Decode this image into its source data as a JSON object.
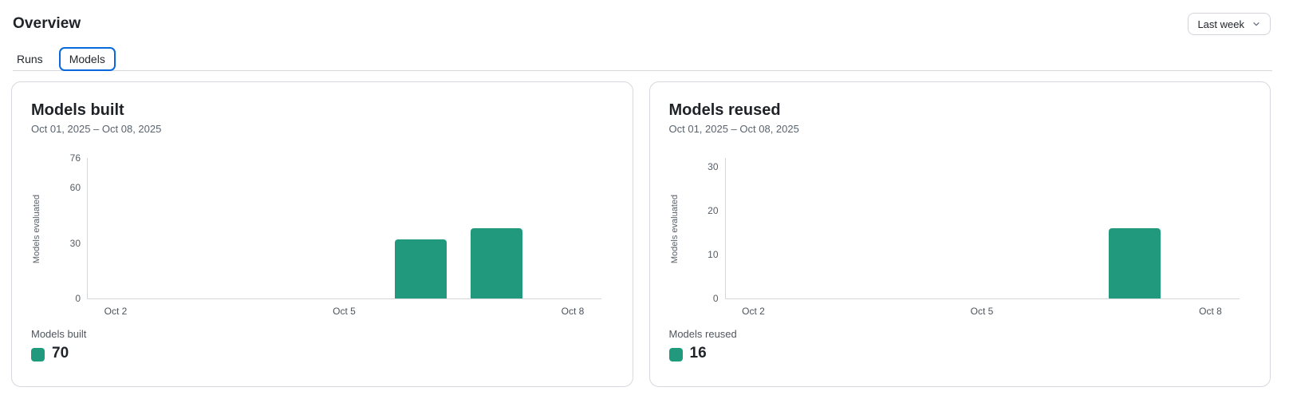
{
  "header": {
    "title": "Overview",
    "time_range_button": {
      "label": "Last week",
      "icon": "chevron-down-icon"
    }
  },
  "tabs": [
    {
      "label": "Runs",
      "active": false
    },
    {
      "label": "Models",
      "active": true
    }
  ],
  "colors": {
    "bar_teal": "#21997D",
    "active_tab_border": "#0969DA",
    "axis_line": "#D4D7DA"
  },
  "cards": [
    {
      "title": "Models built",
      "date_range": "Oct 01, 2025 – Oct 08, 2025",
      "legend": {
        "label": "Models built",
        "value": 70,
        "swatch_color": "#21997D"
      }
    },
    {
      "title": "Models reused",
      "date_range": "Oct 01, 2025 – Oct 08, 2025",
      "legend": {
        "label": "Models reused",
        "value": 16,
        "swatch_color": "#21997D"
      }
    }
  ],
  "chart_data": [
    {
      "type": "bar",
      "title": "Models built",
      "subtitle": "Oct 01, 2025 – Oct 08, 2025",
      "xlabel": "",
      "ylabel": "Models evaluated",
      "ylim": [
        0,
        76
      ],
      "y_ticks": [
        0,
        30,
        60,
        76
      ],
      "x_ticks": [
        {
          "label": "Oct 2",
          "day": 2
        },
        {
          "label": "Oct 5",
          "day": 5
        },
        {
          "label": "Oct 8",
          "day": 8
        }
      ],
      "bars": [
        {
          "date": "Oct 6",
          "day": 6,
          "value": 32
        },
        {
          "date": "Oct 7",
          "day": 7,
          "value": 38
        }
      ],
      "total": 70,
      "bar_color": "#21997D",
      "grid": false,
      "legend_position": "bottom-left"
    },
    {
      "type": "bar",
      "title": "Models reused",
      "subtitle": "Oct 01, 2025 – Oct 08, 2025",
      "xlabel": "",
      "ylabel": "Models evaluated",
      "ylim": [
        0,
        32
      ],
      "y_ticks": [
        0,
        10,
        20,
        30
      ],
      "x_ticks": [
        {
          "label": "Oct 2",
          "day": 2
        },
        {
          "label": "Oct 5",
          "day": 5
        },
        {
          "label": "Oct 8",
          "day": 8
        }
      ],
      "bars": [
        {
          "date": "Oct 7",
          "day": 7,
          "value": 16
        }
      ],
      "total": 16,
      "bar_color": "#21997D",
      "grid": false,
      "legend_position": "bottom-left"
    }
  ]
}
